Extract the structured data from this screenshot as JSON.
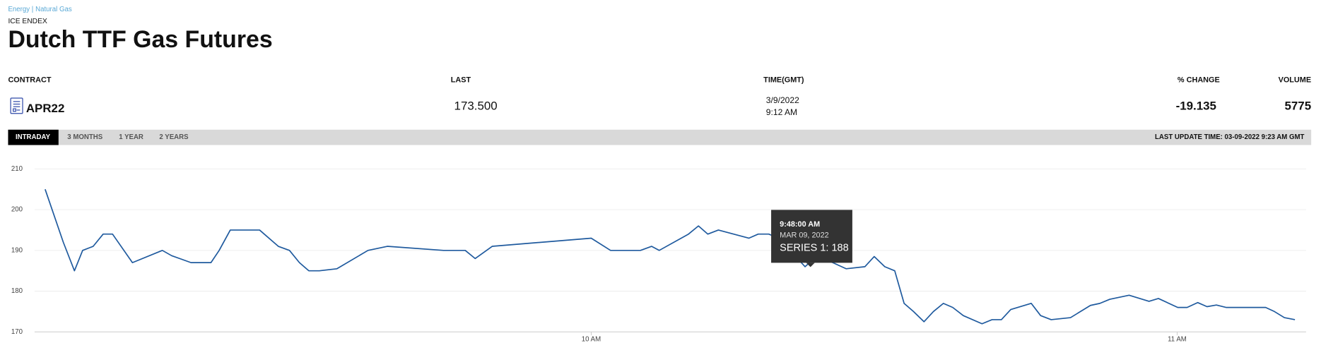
{
  "breadcrumb": [
    "Energy |",
    "Natural Gas"
  ],
  "exchange": "ICE ENDEX",
  "title": "Dutch TTF Gas Futures",
  "quote": {
    "headers": [
      "CONTRACT",
      "LAST",
      "TIME(GMT)",
      "% CHANGE",
      "VOLUME"
    ],
    "contract": "APR22",
    "last": "173.500",
    "date": "3/9/2022",
    "time": "9:12 AM",
    "change": "-19.135",
    "volume": "5775"
  },
  "tabs": [
    "INTRADAY",
    "3 MONTHS",
    "1 YEAR",
    "2 YEARS"
  ],
  "last_update": "LAST UPDATE TIME: 03-09-2022 9:23 AM GMT",
  "chart_data": {
    "type": "line",
    "x": [
      9.068,
      9.099,
      9.118,
      9.132,
      9.15,
      9.167,
      9.183,
      9.217,
      9.268,
      9.284,
      9.317,
      9.333,
      9.351,
      9.365,
      9.384,
      9.434,
      9.466,
      9.485,
      9.502,
      9.518,
      9.536,
      9.566,
      9.619,
      9.652,
      9.748,
      9.785,
      9.802,
      9.831,
      10.0,
      10.033,
      10.084,
      10.103,
      10.116,
      10.166,
      10.183,
      10.199,
      10.217,
      10.269,
      10.285,
      10.303,
      10.32,
      10.365,
      10.38,
      10.397,
      10.435,
      10.467,
      10.483,
      10.501,
      10.518,
      10.534,
      10.55,
      10.568,
      10.584,
      10.601,
      10.617,
      10.635,
      10.667,
      10.684,
      10.7,
      10.716,
      10.751,
      10.767,
      10.785,
      10.818,
      10.852,
      10.868,
      10.885,
      10.918,
      10.952,
      10.968,
      11.001,
      11.017,
      11.035,
      11.051,
      11.067,
      11.084,
      11.134,
      11.151,
      11.166,
      11.183,
      11.201
    ],
    "series": [
      {
        "color": "#1f5a9e",
        "values": [
          205,
          192,
          185,
          190,
          191,
          194,
          194,
          187,
          190,
          188.7,
          187,
          187,
          187,
          190,
          195,
          195,
          191,
          190,
          187,
          185,
          185,
          185.5,
          190,
          191,
          190,
          190,
          188,
          191,
          193,
          190,
          190,
          191,
          190,
          194,
          196,
          194,
          195,
          193,
          194,
          194,
          193,
          186,
          188,
          188,
          185.5,
          186,
          188.5,
          186,
          185,
          177,
          175,
          172.5,
          175,
          177,
          176,
          174,
          172,
          173,
          173,
          175.5,
          177,
          174,
          173,
          173.5,
          176.5,
          177,
          178,
          179,
          177.5,
          178.2,
          176,
          176,
          177.2,
          176.2,
          176.6,
          176,
          176,
          176,
          175,
          173.5,
          173
        ]
      }
    ],
    "xlim": [
      9.05,
      11.22
    ],
    "xticks": [
      {
        "value": 10,
        "label": "10 AM"
      },
      {
        "value": 11,
        "label": "11 AM"
      }
    ],
    "ylim": [
      170,
      212
    ],
    "yticks": [
      170,
      180,
      190,
      200,
      210
    ],
    "grid": true,
    "tooltip": {
      "time": "9:48:00 AM",
      "date": "MAR 09, 2022",
      "label": "SERIES 1: 188"
    }
  }
}
